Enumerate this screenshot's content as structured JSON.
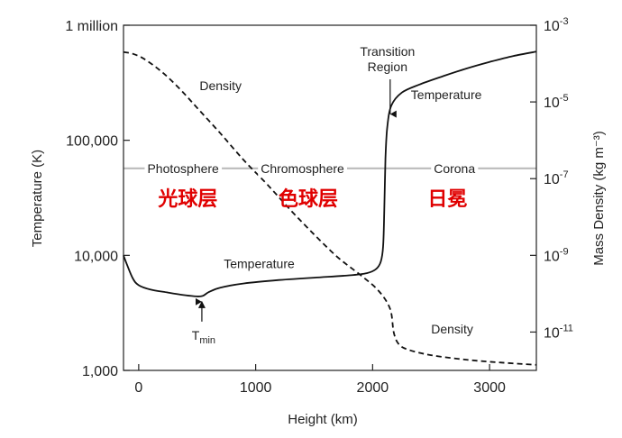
{
  "chart_data": {
    "type": "line",
    "x": {
      "label": "Height (km)",
      "range": [
        -130,
        3400
      ],
      "ticks": [
        0,
        1000,
        2000,
        3000
      ],
      "tick_labels": [
        "0",
        "1000",
        "2000",
        "3000"
      ]
    },
    "y_left": {
      "label": "Temperature (K)",
      "scale": "log",
      "range": [
        1000,
        1000000
      ],
      "ticks": [
        1000,
        10000,
        100000,
        1000000
      ],
      "tick_labels": [
        "1,000",
        "10,000",
        "100,000",
        "1 million"
      ]
    },
    "y_right": {
      "label": "Mass Density (kg m⁻³)",
      "scale": "log",
      "range": [
        1e-12,
        0.001
      ],
      "ticks": [
        1e-11,
        1e-09,
        1e-07,
        1e-05,
        0.001
      ],
      "tick_base": "10",
      "tick_exponents": [
        "-11",
        "-9",
        "-7",
        "-5",
        "-3"
      ]
    },
    "grid": false,
    "series": [
      {
        "id": "temperature",
        "axis": "left",
        "style": "solid",
        "points": [
          [
            -130,
            10000
          ],
          [
            -100,
            8300
          ],
          [
            -50,
            6300
          ],
          [
            0,
            5500
          ],
          [
            100,
            5050
          ],
          [
            250,
            4750
          ],
          [
            400,
            4500
          ],
          [
            500,
            4400
          ],
          [
            550,
            4450
          ],
          [
            600,
            4800
          ],
          [
            700,
            5250
          ],
          [
            900,
            5700
          ],
          [
            1200,
            6100
          ],
          [
            1500,
            6400
          ],
          [
            1800,
            6700
          ],
          [
            1950,
            7000
          ],
          [
            2030,
            7600
          ],
          [
            2070,
            8800
          ],
          [
            2090,
            12000
          ],
          [
            2100,
            25000
          ],
          [
            2110,
            70000
          ],
          [
            2125,
            130000
          ],
          [
            2160,
            200000
          ],
          [
            2250,
            260000
          ],
          [
            2400,
            305000
          ],
          [
            2600,
            360000
          ],
          [
            2800,
            420000
          ],
          [
            3000,
            480000
          ],
          [
            3200,
            540000
          ],
          [
            3400,
            590000
          ]
        ]
      },
      {
        "id": "density",
        "axis": "right",
        "style": "dashed",
        "points": [
          [
            -130,
            0.0002
          ],
          [
            -50,
            0.00018
          ],
          [
            50,
            0.00013
          ],
          [
            200,
            6e-05
          ],
          [
            350,
            2.2e-05
          ],
          [
            500,
            7e-06
          ],
          [
            700,
            1.5e-06
          ],
          [
            900,
            3e-07
          ],
          [
            1100,
            7e-08
          ],
          [
            1300,
            1.5e-08
          ],
          [
            1500,
            3.5e-09
          ],
          [
            1700,
            9e-10
          ],
          [
            1900,
            3e-10
          ],
          [
            2050,
            1.2e-10
          ],
          [
            2150,
            4e-11
          ],
          [
            2180,
            1e-11
          ],
          [
            2220,
            5e-12
          ],
          [
            2300,
            3.5e-12
          ],
          [
            2500,
            2.5e-12
          ],
          [
            2800,
            1.9e-12
          ],
          [
            3100,
            1.6e-12
          ],
          [
            3400,
            1.4e-12
          ]
        ]
      }
    ],
    "region_line": {
      "axis": "left",
      "y": 57000,
      "from": -130,
      "to": 3400,
      "color": "#bbbbbb"
    },
    "region_labels": [
      {
        "text": "Photosphere",
        "x": 380
      },
      {
        "text": "Chromosphere",
        "x": 1400
      },
      {
        "text": "Corona",
        "x": 2700
      }
    ],
    "chinese_labels": [
      {
        "text": "光球层",
        "x": 420
      },
      {
        "text": "色球层",
        "x": 1450
      },
      {
        "text": "日冕",
        "x": 2640
      }
    ],
    "annotations": [
      {
        "text": "Density",
        "x": 700,
        "y_left": 300000
      },
      {
        "text": "Temperature",
        "x": 2630,
        "y_left": 250000
      },
      {
        "text": "Temperature",
        "x": 1030,
        "y_left": 8500
      },
      {
        "text": "Density",
        "x": 2680,
        "y_left": 2300
      }
    ],
    "transition_region": {
      "lines": [
        "Transition",
        "Region"
      ],
      "x": 2150,
      "arrow_to_y_left": 160000
    },
    "tmin": {
      "base": "T",
      "subscript": "min",
      "x": 540,
      "arrow_to_y_left": 4400
    },
    "colors": {
      "line": "#111111",
      "chinese_label": "#e00000",
      "region_line": "#bbbbbb"
    }
  }
}
